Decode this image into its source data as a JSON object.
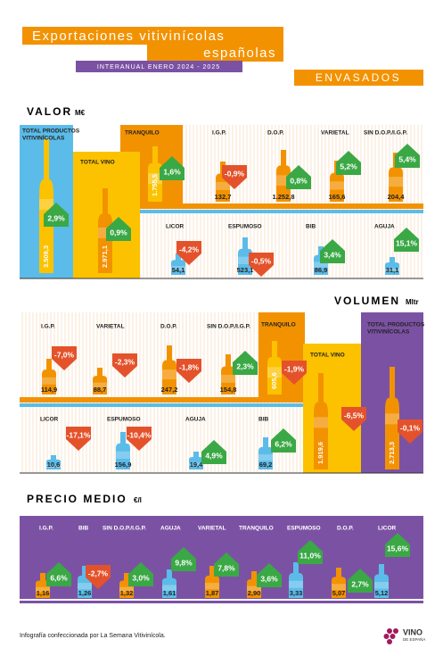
{
  "header": {
    "title_line1": "Exportaciones vitivinícolas",
    "title_line2": "españolas",
    "period": "INTERANUAL ENERO 2024 - 2025",
    "category": "ENVASADOS"
  },
  "sections": [
    {
      "title": "VALOR",
      "unit": "M€",
      "items": [
        {
          "label": [
            "TOTAL PRODUCTOS",
            "VITIVINÍCOLAS"
          ],
          "value": "3.509,3",
          "change": "2,9%"
        },
        {
          "label": "TOTAL VINO",
          "value": "2.971,1",
          "change": "0,9%"
        },
        {
          "label": "TRANQUILO",
          "value": "1.755,5",
          "change": "1,6%"
        },
        {
          "label": "I.G.P.",
          "value": "132,7",
          "change": "-0,9%"
        },
        {
          "label": "D.O.P.",
          "value": "1.252,8",
          "change": "0,8%"
        },
        {
          "label": "VARIETAL",
          "value": "165,6",
          "change": "5,2%"
        },
        {
          "label": "SIN D.O.P./I.G.P.",
          "value": "204,4",
          "change": "5,4%"
        },
        {
          "label": "LICOR",
          "value": "54,1",
          "change": "-4,2%"
        },
        {
          "label": "ESPUMOSO",
          "value": "523,1",
          "change": "-0,5%"
        },
        {
          "label": "BIB",
          "value": "86,9",
          "change": "3,4%"
        },
        {
          "label": "AGUJA",
          "value": "31,1",
          "change": "15,1%"
        }
      ]
    },
    {
      "title": "VOLUMEN",
      "unit": "Mltr",
      "items": [
        {
          "label": "I.G.P.",
          "value": "114,9",
          "change": "-7,0%"
        },
        {
          "label": "VARIETAL",
          "value": "88,7",
          "change": "-2,3%"
        },
        {
          "label": "D.O.P.",
          "value": "247,2",
          "change": "-1,8%"
        },
        {
          "label": "SIN D.O.P./I.G.P.",
          "value": "154,8",
          "change": "2,3%"
        },
        {
          "label": "TRANQUILO",
          "value": "605,6",
          "change": "-1,9%"
        },
        {
          "label": "TOTAL VINO",
          "value": "1.919,6",
          "change": "-6,5%"
        },
        {
          "label": [
            "TOTAL PRODUCTOS",
            "VITIVINÍCOLAS"
          ],
          "value": "2.713,3",
          "change": "-0,1%"
        },
        {
          "label": "LICOR",
          "value": "10,6",
          "change": "-17,1%"
        },
        {
          "label": "ESPUMOSO",
          "value": "156,9",
          "change": "-10,4%"
        },
        {
          "label": "AGUJA",
          "value": "19,4",
          "change": "4,9%"
        },
        {
          "label": "BIB",
          "value": "69,2",
          "change": "6,2%"
        }
      ]
    },
    {
      "title": "PRECIO MEDIO",
      "unit": "€/l",
      "items": [
        {
          "label": "I.G.P.",
          "value": "1,16",
          "change": "6,6%"
        },
        {
          "label": "BIB",
          "value": "1,26",
          "change": "-2,7%"
        },
        {
          "label": "SIN D.O.P./I.G.P.",
          "value": "1,32",
          "change": "3,0%"
        },
        {
          "label": "AGUJA",
          "value": "1,61",
          "change": "9,8%"
        },
        {
          "label": "VARIETAL",
          "value": "1,87",
          "change": "7,8%"
        },
        {
          "label": "TRANQUILO",
          "value": "2,90",
          "change": "3,6%"
        },
        {
          "label": "ESPUMOSO",
          "value": "3,33",
          "change": "11,0%"
        },
        {
          "label": "D.O.P.",
          "value": "5,07",
          "change": "2,7%"
        },
        {
          "label": "LICOR",
          "value": "5,12",
          "change": "15,6%"
        }
      ]
    }
  ],
  "footer": {
    "credit": "Infografía confeccionada por La Semana Vitivinícola.",
    "logo_line1": "VINO",
    "logo_line2": "DE ESPAÑA"
  }
}
